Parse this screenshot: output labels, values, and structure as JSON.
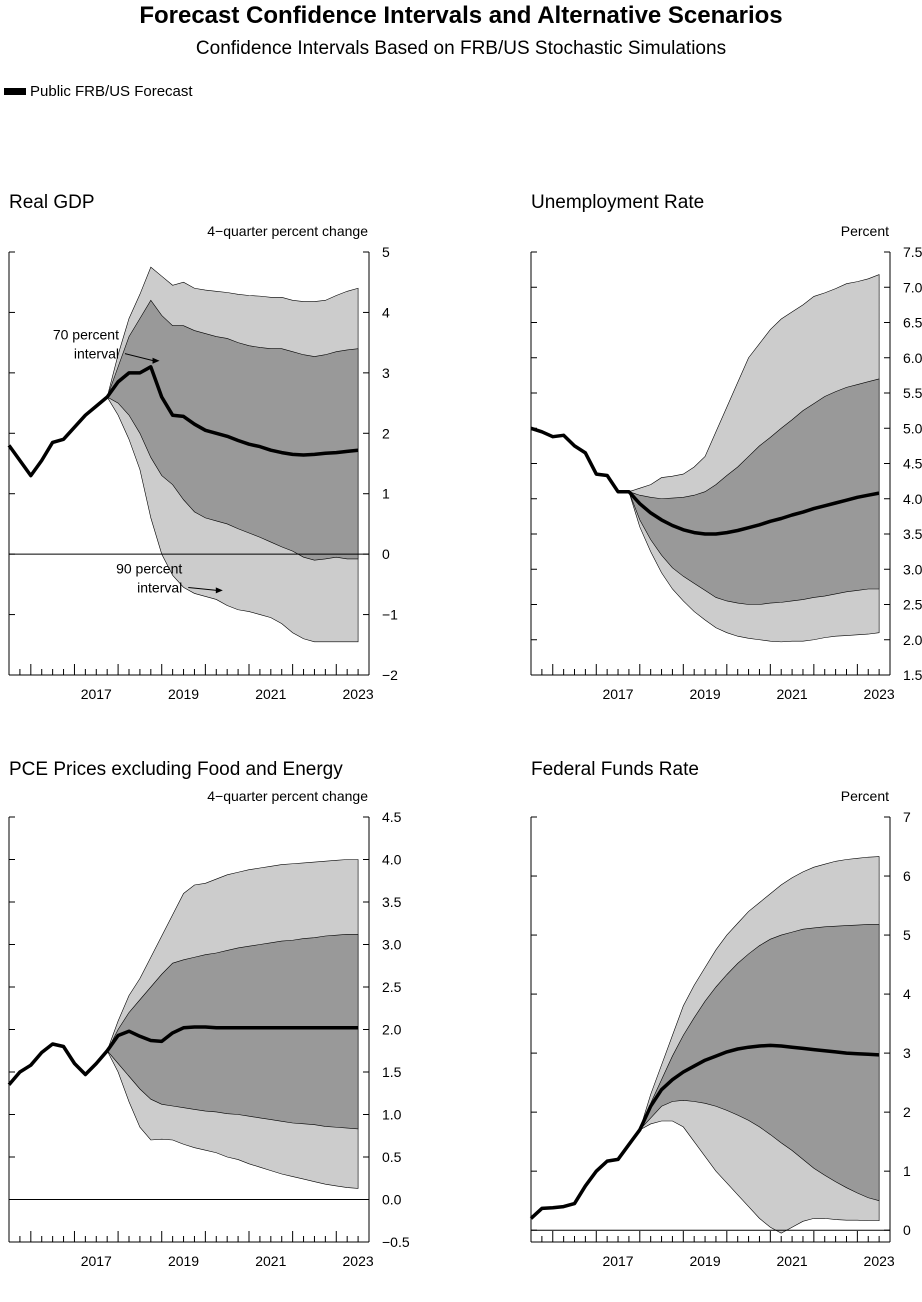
{
  "title": "Forecast Confidence Intervals and Alternative Scenarios",
  "subtitle": "Confidence Intervals Based on FRB/US Stochastic Simulations",
  "legend": {
    "label": "Public FRB/US Forecast"
  },
  "colors": {
    "band90": "#cccccc",
    "band70": "#999999",
    "line": "#000000"
  },
  "chart_data": [
    {
      "type": "area",
      "title": "Real GDP",
      "units": "4−quarter percent change",
      "xlim": [
        2015.5,
        2023.75
      ],
      "ylim": [
        -2,
        5
      ],
      "yticks": [
        -2,
        -1,
        0,
        1,
        2,
        3,
        4,
        5
      ],
      "ytick_labels": [
        "−2",
        "−1",
        "0",
        "1",
        "2",
        "3",
        "4",
        "5"
      ],
      "xtick_labels": [
        "2017",
        "2019",
        "2021",
        "2023"
      ],
      "zero_line": 0,
      "annotations": [
        {
          "text": [
            "70 percent",
            "interval"
          ],
          "target": [
            2018.95,
            3.2
          ]
        },
        {
          "text": [
            "90 percent",
            "interval"
          ],
          "target": [
            2020.4,
            -0.6
          ]
        }
      ],
      "series": [
        {
          "name": "Public FRB/US Forecast",
          "x": [
            2015.5,
            2015.75,
            2016,
            2016.25,
            2016.5,
            2016.75,
            2017,
            2017.25,
            2017.5,
            2017.75,
            2018,
            2018.25,
            2018.5,
            2018.75,
            2019,
            2019.25,
            2019.5,
            2019.75,
            2020,
            2020.25,
            2020.5,
            2020.75,
            2021,
            2021.25,
            2021.5,
            2021.75,
            2022,
            2022.25,
            2022.5,
            2022.75,
            2023,
            2023.25,
            2023.5
          ],
          "y": [
            1.8,
            1.55,
            1.3,
            1.55,
            1.85,
            1.9,
            2.1,
            2.3,
            2.45,
            2.6,
            2.85,
            3.0,
            3.0,
            3.1,
            2.6,
            2.3,
            2.28,
            2.15,
            2.05,
            2.0,
            1.95,
            1.88,
            1.82,
            1.78,
            1.72,
            1.68,
            1.65,
            1.64,
            1.65,
            1.67,
            1.68,
            1.7,
            1.72
          ]
        }
      ],
      "bands": {
        "x": [
          2017.75,
          2018,
          2018.25,
          2018.5,
          2018.75,
          2019,
          2019.25,
          2019.5,
          2019.75,
          2020,
          2020.25,
          2020.5,
          2020.75,
          2021,
          2021.25,
          2021.5,
          2021.75,
          2022,
          2022.25,
          2022.5,
          2022.75,
          2023,
          2023.25,
          2023.5
        ],
        "upper90": [
          2.6,
          3.3,
          3.9,
          4.3,
          4.75,
          4.6,
          4.45,
          4.5,
          4.4,
          4.37,
          4.35,
          4.33,
          4.3,
          4.28,
          4.27,
          4.25,
          4.25,
          4.2,
          4.18,
          4.18,
          4.2,
          4.28,
          4.35,
          4.4
        ],
        "upper70": [
          2.6,
          3.1,
          3.6,
          3.9,
          4.2,
          3.95,
          3.78,
          3.78,
          3.7,
          3.65,
          3.6,
          3.57,
          3.5,
          3.45,
          3.42,
          3.4,
          3.4,
          3.35,
          3.3,
          3.27,
          3.3,
          3.35,
          3.38,
          3.4
        ],
        "lower70": [
          2.6,
          2.5,
          2.3,
          2.0,
          1.6,
          1.3,
          1.15,
          0.9,
          0.7,
          0.6,
          0.55,
          0.5,
          0.42,
          0.35,
          0.28,
          0.2,
          0.12,
          0.05,
          -0.05,
          -0.1,
          -0.08,
          -0.05,
          -0.08,
          -0.08
        ],
        "lower90": [
          2.6,
          2.3,
          1.9,
          1.4,
          0.6,
          0.0,
          -0.35,
          -0.55,
          -0.65,
          -0.7,
          -0.75,
          -0.85,
          -0.92,
          -0.95,
          -1.0,
          -1.05,
          -1.15,
          -1.3,
          -1.4,
          -1.45,
          -1.45,
          -1.45,
          -1.45,
          -1.45
        ]
      }
    },
    {
      "type": "area",
      "title": "Unemployment Rate",
      "units": "Percent",
      "xlim": [
        2015.5,
        2023.75
      ],
      "ylim": [
        1.5,
        7.5
      ],
      "yticks": [
        1.5,
        2.0,
        2.5,
        3.0,
        3.5,
        4.0,
        4.5,
        5.0,
        5.5,
        6.0,
        6.5,
        7.0,
        7.5
      ],
      "ytick_labels": [
        "1.5",
        "2.0",
        "2.5",
        "3.0",
        "3.5",
        "4.0",
        "4.5",
        "5.0",
        "5.5",
        "6.0",
        "6.5",
        "7.0",
        "7.5"
      ],
      "xtick_labels": [
        "2017",
        "2019",
        "2021",
        "2023"
      ],
      "zero_line": null,
      "annotations": [],
      "series": [
        {
          "name": "Public FRB/US Forecast",
          "x": [
            2015.5,
            2015.75,
            2016,
            2016.25,
            2016.5,
            2016.75,
            2017,
            2017.25,
            2017.5,
            2017.75,
            2018,
            2018.25,
            2018.5,
            2018.75,
            2019,
            2019.25,
            2019.5,
            2019.75,
            2020,
            2020.25,
            2020.5,
            2020.75,
            2021,
            2021.25,
            2021.5,
            2021.75,
            2022,
            2022.25,
            2022.5,
            2022.75,
            2023,
            2023.25,
            2023.5
          ],
          "y": [
            5.0,
            4.95,
            4.88,
            4.9,
            4.75,
            4.65,
            4.35,
            4.33,
            4.1,
            4.1,
            3.93,
            3.8,
            3.7,
            3.62,
            3.56,
            3.52,
            3.5,
            3.5,
            3.52,
            3.55,
            3.59,
            3.63,
            3.68,
            3.72,
            3.77,
            3.81,
            3.86,
            3.9,
            3.94,
            3.98,
            4.02,
            4.05,
            4.08
          ]
        }
      ],
      "bands": {
        "x": [
          2017.75,
          2018,
          2018.25,
          2018.5,
          2018.75,
          2019,
          2019.25,
          2019.5,
          2019.75,
          2020,
          2020.25,
          2020.5,
          2020.75,
          2021,
          2021.25,
          2021.5,
          2021.75,
          2022,
          2022.25,
          2022.5,
          2022.75,
          2023,
          2023.25,
          2023.5
        ],
        "upper90": [
          4.1,
          4.15,
          4.2,
          4.3,
          4.32,
          4.35,
          4.45,
          4.6,
          4.95,
          5.3,
          5.65,
          6.0,
          6.2,
          6.4,
          6.55,
          6.65,
          6.75,
          6.87,
          6.92,
          6.98,
          7.05,
          7.08,
          7.12,
          7.18
        ],
        "upper70": [
          4.1,
          4.05,
          4.02,
          4.0,
          4.01,
          4.02,
          4.05,
          4.1,
          4.2,
          4.33,
          4.45,
          4.6,
          4.75,
          4.87,
          5.0,
          5.12,
          5.25,
          5.35,
          5.45,
          5.52,
          5.58,
          5.62,
          5.66,
          5.7
        ],
        "lower70": [
          4.1,
          3.7,
          3.42,
          3.2,
          3.02,
          2.9,
          2.8,
          2.7,
          2.6,
          2.55,
          2.52,
          2.5,
          2.5,
          2.52,
          2.53,
          2.55,
          2.57,
          2.6,
          2.62,
          2.65,
          2.68,
          2.7,
          2.72,
          2.72
        ],
        "lower90": [
          4.1,
          3.6,
          3.25,
          2.95,
          2.72,
          2.55,
          2.4,
          2.28,
          2.17,
          2.1,
          2.05,
          2.02,
          2.0,
          1.98,
          1.97,
          1.98,
          1.98,
          2.0,
          2.03,
          2.05,
          2.06,
          2.07,
          2.08,
          2.1
        ]
      }
    },
    {
      "type": "area",
      "title": "PCE Prices excluding Food and Energy",
      "units": "4−quarter percent change",
      "xlim": [
        2015.5,
        2023.75
      ],
      "ylim": [
        -0.5,
        4.5
      ],
      "yticks": [
        -0.5,
        0.0,
        0.5,
        1.0,
        1.5,
        2.0,
        2.5,
        3.0,
        3.5,
        4.0,
        4.5
      ],
      "ytick_labels": [
        "−0.5",
        "0.0",
        "0.5",
        "1.0",
        "1.5",
        "2.0",
        "2.5",
        "3.0",
        "3.5",
        "4.0",
        "4.5"
      ],
      "xtick_labels": [
        "2017",
        "2019",
        "2021",
        "2023"
      ],
      "zero_line": 0,
      "annotations": [],
      "series": [
        {
          "name": "Public FRB/US Forecast",
          "x": [
            2015.5,
            2015.75,
            2016,
            2016.25,
            2016.5,
            2016.75,
            2017,
            2017.25,
            2017.5,
            2017.75,
            2018,
            2018.25,
            2018.5,
            2018.75,
            2019,
            2019.25,
            2019.5,
            2019.75,
            2020,
            2020.25,
            2020.5,
            2020.75,
            2021,
            2021.25,
            2021.5,
            2021.75,
            2022,
            2022.25,
            2022.5,
            2022.75,
            2023,
            2023.25,
            2023.5
          ],
          "y": [
            1.35,
            1.5,
            1.58,
            1.73,
            1.83,
            1.8,
            1.6,
            1.47,
            1.6,
            1.75,
            1.93,
            1.98,
            1.92,
            1.87,
            1.86,
            1.96,
            2.02,
            2.03,
            2.03,
            2.02,
            2.02,
            2.02,
            2.02,
            2.02,
            2.02,
            2.02,
            2.02,
            2.02,
            2.02,
            2.02,
            2.02,
            2.02,
            2.02
          ]
        }
      ],
      "bands": {
        "x": [
          2017.75,
          2018,
          2018.25,
          2018.5,
          2018.75,
          2019,
          2019.25,
          2019.5,
          2019.75,
          2020,
          2020.25,
          2020.5,
          2020.75,
          2021,
          2021.25,
          2021.5,
          2021.75,
          2022,
          2022.25,
          2022.5,
          2022.75,
          2023,
          2023.25,
          2023.5
        ],
        "upper90": [
          1.75,
          2.1,
          2.4,
          2.6,
          2.85,
          3.1,
          3.35,
          3.6,
          3.7,
          3.72,
          3.77,
          3.82,
          3.85,
          3.88,
          3.9,
          3.92,
          3.94,
          3.95,
          3.96,
          3.97,
          3.98,
          3.99,
          4.0,
          4.0
        ],
        "upper70": [
          1.75,
          2.0,
          2.2,
          2.35,
          2.5,
          2.65,
          2.78,
          2.82,
          2.85,
          2.88,
          2.9,
          2.93,
          2.96,
          2.98,
          3.0,
          3.02,
          3.04,
          3.05,
          3.07,
          3.08,
          3.1,
          3.11,
          3.12,
          3.12
        ],
        "lower70": [
          1.75,
          1.6,
          1.45,
          1.3,
          1.18,
          1.12,
          1.1,
          1.08,
          1.06,
          1.04,
          1.03,
          1.01,
          1.0,
          0.98,
          0.96,
          0.94,
          0.92,
          0.9,
          0.89,
          0.88,
          0.86,
          0.85,
          0.84,
          0.83
        ],
        "lower90": [
          1.75,
          1.5,
          1.15,
          0.85,
          0.7,
          0.71,
          0.7,
          0.65,
          0.61,
          0.58,
          0.55,
          0.5,
          0.47,
          0.42,
          0.38,
          0.34,
          0.3,
          0.27,
          0.24,
          0.21,
          0.18,
          0.16,
          0.14,
          0.13
        ]
      }
    },
    {
      "type": "area",
      "title": "Federal Funds Rate",
      "units": "Percent",
      "xlim": [
        2015.5,
        2023.75
      ],
      "ylim": [
        -0.2,
        7
      ],
      "yticks": [
        0,
        1,
        2,
        3,
        4,
        5,
        6,
        7
      ],
      "ytick_labels": [
        "0",
        "1",
        "2",
        "3",
        "4",
        "5",
        "6",
        "7"
      ],
      "xtick_labels": [
        "2017",
        "2019",
        "2021",
        "2023"
      ],
      "zero_line": 0,
      "annotations": [],
      "series": [
        {
          "name": "Public FRB/US Forecast",
          "x": [
            2015.5,
            2015.75,
            2016,
            2016.25,
            2016.5,
            2016.75,
            2017,
            2017.25,
            2017.5,
            2017.75,
            2018,
            2018.25,
            2018.5,
            2018.75,
            2019,
            2019.25,
            2019.5,
            2019.75,
            2020,
            2020.25,
            2020.5,
            2020.75,
            2021,
            2021.25,
            2021.5,
            2021.75,
            2022,
            2022.25,
            2022.5,
            2022.75,
            2023,
            2023.25,
            2023.5
          ],
          "y": [
            0.2,
            0.37,
            0.38,
            0.4,
            0.45,
            0.75,
            1.0,
            1.17,
            1.2,
            1.45,
            1.7,
            2.1,
            2.38,
            2.55,
            2.68,
            2.78,
            2.88,
            2.95,
            3.02,
            3.07,
            3.1,
            3.12,
            3.13,
            3.12,
            3.1,
            3.08,
            3.06,
            3.04,
            3.02,
            3.0,
            2.99,
            2.98,
            2.97
          ]
        }
      ],
      "bands": {
        "x": [
          2018,
          2018.25,
          2018.5,
          2018.75,
          2019,
          2019.25,
          2019.5,
          2019.75,
          2020,
          2020.25,
          2020.5,
          2020.75,
          2021,
          2021.25,
          2021.5,
          2021.75,
          2022,
          2022.25,
          2022.5,
          2022.75,
          2023,
          2023.25,
          2023.5
        ],
        "upper90": [
          1.7,
          2.3,
          2.8,
          3.3,
          3.8,
          4.15,
          4.45,
          4.75,
          5.0,
          5.2,
          5.4,
          5.55,
          5.7,
          5.85,
          5.97,
          6.07,
          6.15,
          6.2,
          6.25,
          6.28,
          6.3,
          6.32,
          6.33
        ],
        "upper70": [
          1.7,
          2.15,
          2.55,
          2.95,
          3.3,
          3.6,
          3.88,
          4.12,
          4.33,
          4.52,
          4.68,
          4.82,
          4.93,
          5.0,
          5.05,
          5.1,
          5.12,
          5.14,
          5.15,
          5.16,
          5.17,
          5.18,
          5.18
        ],
        "lower70": [
          1.7,
          1.9,
          2.1,
          2.18,
          2.2,
          2.18,
          2.15,
          2.1,
          2.03,
          1.95,
          1.86,
          1.75,
          1.62,
          1.48,
          1.35,
          1.2,
          1.05,
          0.93,
          0.82,
          0.72,
          0.63,
          0.55,
          0.5
        ],
        "lower90": [
          1.7,
          1.8,
          1.85,
          1.85,
          1.75,
          1.5,
          1.25,
          1.0,
          0.8,
          0.6,
          0.4,
          0.2,
          0.05,
          -0.05,
          0.05,
          0.15,
          0.2,
          0.2,
          0.18,
          0.17,
          0.17,
          0.16,
          0.16
        ]
      }
    }
  ]
}
